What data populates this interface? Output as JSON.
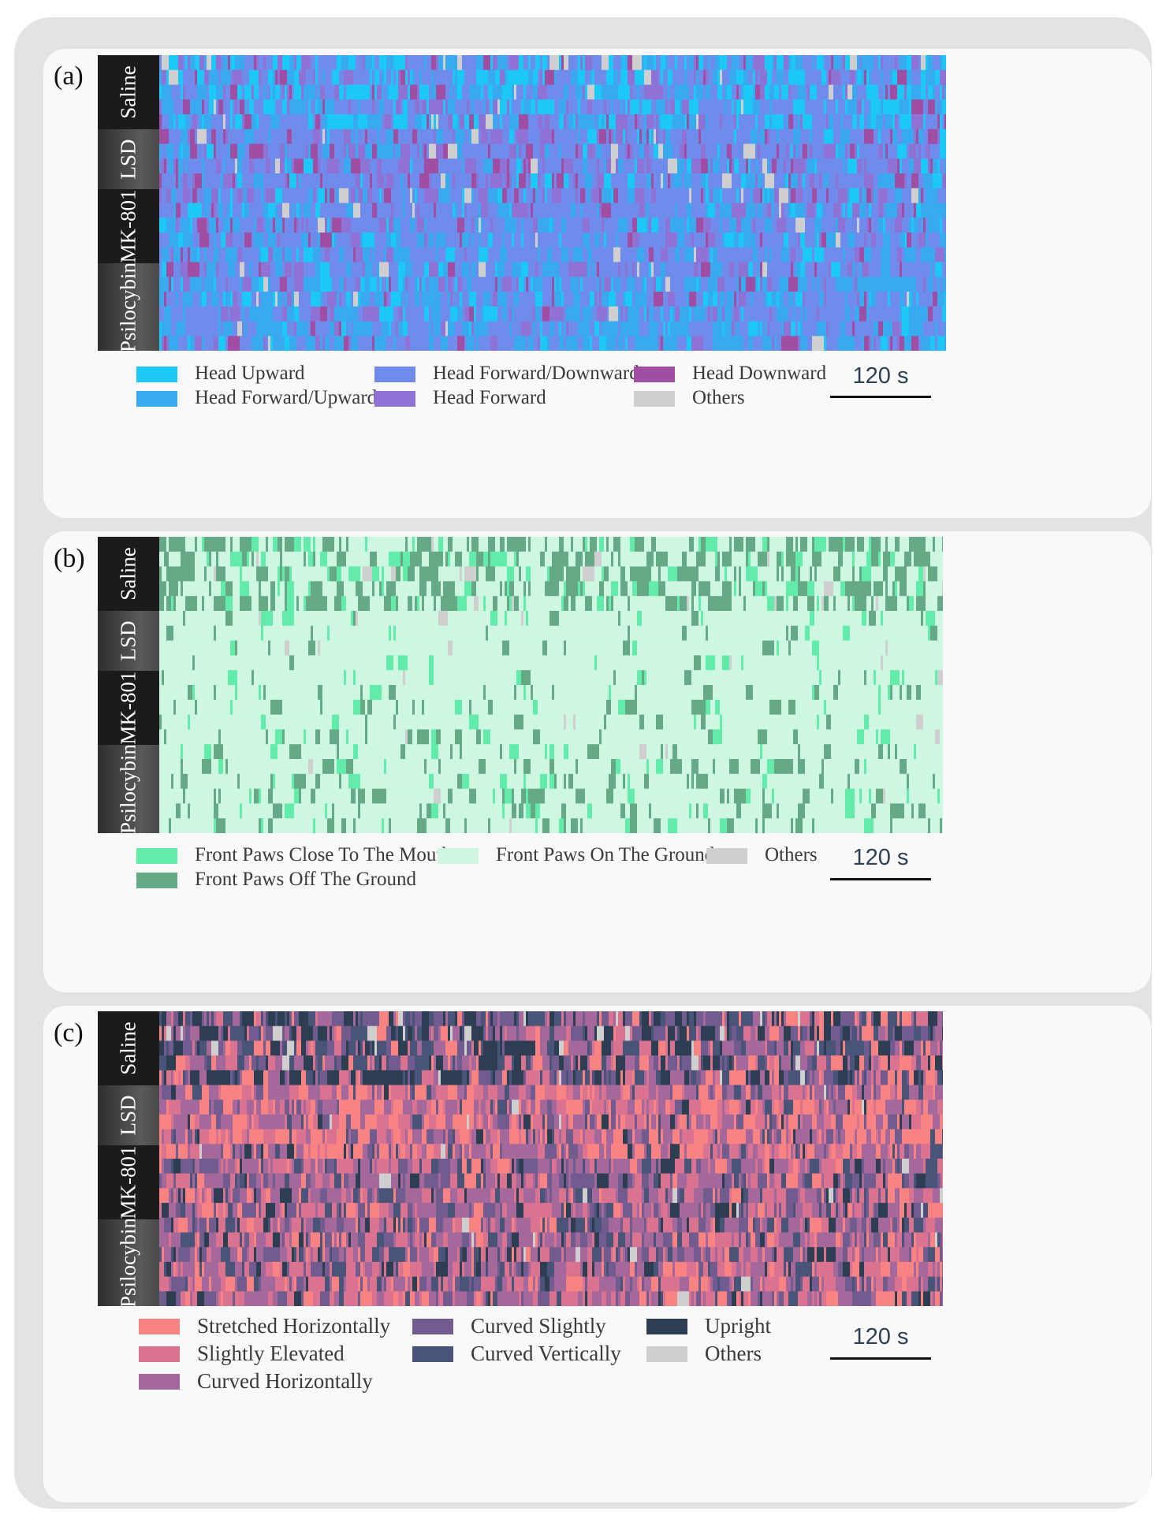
{
  "panels": [
    {
      "letter": "(a)",
      "groups": [
        "Saline",
        "LSD",
        "MK-801",
        "Psilocybin"
      ],
      "scale_bar_label": "120 s",
      "legend": [
        {
          "label": "Head Upward",
          "color": "#1cc8f5"
        },
        {
          "label": "Head Forward/Upward",
          "color": "#3aaaf0"
        },
        {
          "label": "Head Forward/Downward",
          "color": "#6f8cec"
        },
        {
          "label": "Head Forward",
          "color": "#8f72d6"
        },
        {
          "label": "Head Downward",
          "color": "#a04ea4"
        },
        {
          "label": "Others",
          "color": "#cfcfcf"
        }
      ]
    },
    {
      "letter": "(b)",
      "groups": [
        "Saline",
        "LSD",
        "MK-801",
        "Psilocybin"
      ],
      "scale_bar_label": "120 s",
      "legend": [
        {
          "label": "Front Paws Close To The Mouth",
          "color": "#63ebab"
        },
        {
          "label": "Front Paws Off The Ground",
          "color": "#66a987"
        },
        {
          "label": "Front Paws On The Ground",
          "color": "#cdf7e0"
        },
        {
          "label": "Others",
          "color": "#cfcfcf"
        }
      ]
    },
    {
      "letter": "(c)",
      "groups": [
        "Saline",
        "LSD",
        "MK-801",
        "Psilocybin"
      ],
      "scale_bar_label": "120 s",
      "legend": [
        {
          "label": "Stretched Horizontally",
          "color": "#f98383"
        },
        {
          "label": "Slightly Elevated",
          "color": "#d9738f"
        },
        {
          "label": "Curved Horizontally",
          "color": "#a5689a"
        },
        {
          "label": "Curved Slightly",
          "color": "#725c8f"
        },
        {
          "label": "Curved Vertically",
          "color": "#4a5479"
        },
        {
          "label": "Upright",
          "color": "#2d3e52"
        },
        {
          "label": "Others",
          "color": "#cfcfcf"
        }
      ]
    }
  ],
  "chart_data": [
    {
      "type": "heatmap",
      "title": "",
      "rows_per_group": 5,
      "groups": [
        "Saline",
        "LSD",
        "MK-801",
        "Psilocybin"
      ],
      "categories": [
        "Head Upward",
        "Head Forward/Upward",
        "Head Forward/Downward",
        "Head Forward",
        "Head Downward",
        "Others"
      ],
      "xlabel": "",
      "ylabel": "",
      "group_composition": {
        "Saline": [
          0.28,
          0.2,
          0.32,
          0.12,
          0.05,
          0.03
        ],
        "LSD": [
          0.06,
          0.14,
          0.48,
          0.18,
          0.11,
          0.03
        ],
        "MK-801": [
          0.08,
          0.22,
          0.5,
          0.13,
          0.05,
          0.02
        ],
        "Psilocybin": [
          0.1,
          0.3,
          0.42,
          0.12,
          0.04,
          0.02
        ]
      }
    },
    {
      "type": "heatmap",
      "title": "",
      "rows_per_group": 5,
      "groups": [
        "Saline",
        "LSD",
        "MK-801",
        "Psilocybin"
      ],
      "categories": [
        "Front Paws Close To The Mouth",
        "Front Paws Off The Ground",
        "Front Paws On The Ground",
        "Others"
      ],
      "xlabel": "",
      "ylabel": "",
      "group_composition": {
        "Saline": [
          0.12,
          0.38,
          0.48,
          0.02
        ],
        "LSD": [
          0.04,
          0.05,
          0.9,
          0.01
        ],
        "MK-801": [
          0.04,
          0.1,
          0.85,
          0.01
        ],
        "Psilocybin": [
          0.05,
          0.16,
          0.78,
          0.01
        ]
      }
    },
    {
      "type": "heatmap",
      "title": "",
      "rows_per_group": 5,
      "groups": [
        "Saline",
        "LSD",
        "MK-801",
        "Psilocybin"
      ],
      "categories": [
        "Stretched Horizontally",
        "Slightly Elevated",
        "Curved Horizontally",
        "Curved Slightly",
        "Curved Vertically",
        "Upright",
        "Others"
      ],
      "xlabel": "",
      "ylabel": "",
      "group_composition": {
        "Saline": [
          0.1,
          0.12,
          0.18,
          0.16,
          0.2,
          0.22,
          0.02
        ],
        "LSD": [
          0.28,
          0.22,
          0.28,
          0.12,
          0.06,
          0.03,
          0.01
        ],
        "MK-801": [
          0.12,
          0.2,
          0.32,
          0.16,
          0.12,
          0.07,
          0.01
        ],
        "Psilocybin": [
          0.14,
          0.22,
          0.3,
          0.14,
          0.12,
          0.07,
          0.01
        ]
      }
    }
  ]
}
